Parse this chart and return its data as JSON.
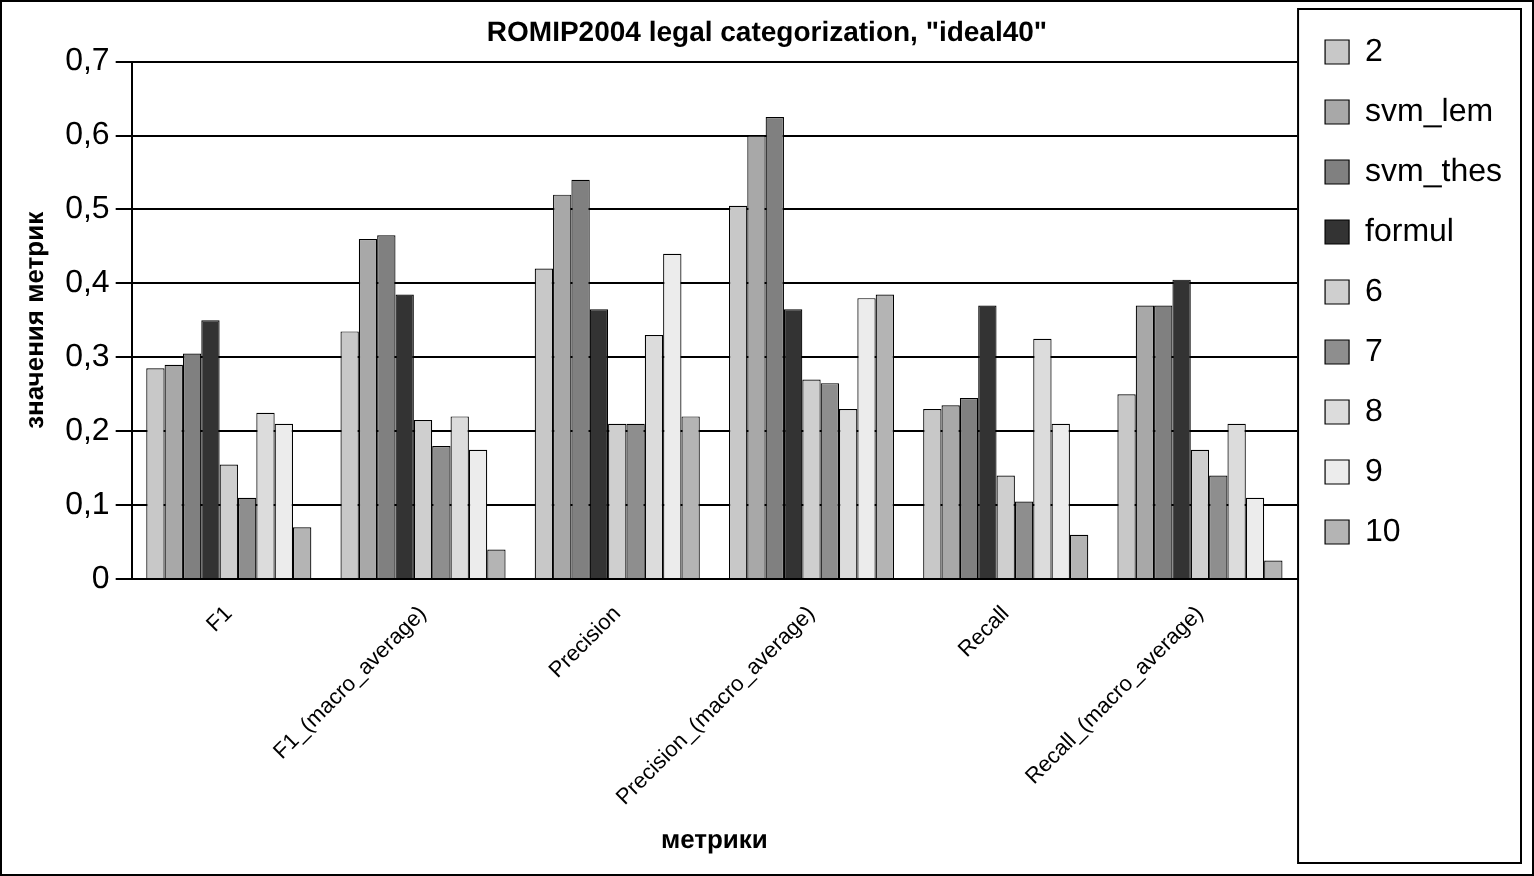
{
  "chart_data": {
    "type": "bar",
    "title": "ROMIP2004 legal categorization, \"ideal40\"",
    "xlabel": "метрики",
    "ylabel": "значения метрик",
    "categories": [
      "F1",
      "F1_(macro_average)",
      "Precision",
      "Precision_(macro_average)",
      "Recall",
      "Recall_(macro_average)"
    ],
    "series": [
      {
        "name": "2",
        "color": "#c8c8c8",
        "values": [
          0.285,
          0.335,
          0.42,
          0.505,
          0.23,
          0.25
        ]
      },
      {
        "name": "svm_lem",
        "color": "#a8a8a8",
        "values": [
          0.29,
          0.46,
          0.52,
          0.6,
          0.235,
          0.37
        ]
      },
      {
        "name": "svm_thes",
        "color": "#808080",
        "values": [
          0.305,
          0.465,
          0.54,
          0.625,
          0.245,
          0.37
        ]
      },
      {
        "name": "formul",
        "color": "#333333",
        "values": [
          0.35,
          0.385,
          0.365,
          0.365,
          0.37,
          0.405
        ]
      },
      {
        "name": "6",
        "color": "#cfcfcf",
        "values": [
          0.155,
          0.215,
          0.21,
          0.27,
          0.14,
          0.175
        ]
      },
      {
        "name": "7",
        "color": "#8e8e8e",
        "values": [
          0.11,
          0.18,
          0.21,
          0.265,
          0.105,
          0.14
        ]
      },
      {
        "name": "8",
        "color": "#dcdcdc",
        "values": [
          0.225,
          0.22,
          0.33,
          0.23,
          0.325,
          0.21
        ]
      },
      {
        "name": "9",
        "color": "#ececec",
        "values": [
          0.21,
          0.175,
          0.44,
          0.38,
          0.21,
          0.11
        ]
      },
      {
        "name": "10",
        "color": "#b4b4b4",
        "values": [
          0.07,
          0.04,
          0.22,
          0.385,
          0.06,
          0.025
        ]
      }
    ],
    "ylim": [
      0,
      0.7
    ],
    "yticks": [
      {
        "value": 0,
        "label": "0"
      },
      {
        "value": 0.1,
        "label": "0,1"
      },
      {
        "value": 0.2,
        "label": "0,2"
      },
      {
        "value": 0.3,
        "label": "0,3"
      },
      {
        "value": 0.4,
        "label": "0,4"
      },
      {
        "value": 0.5,
        "label": "0,5"
      },
      {
        "value": 0.6,
        "label": "0,6"
      },
      {
        "value": 0.7,
        "label": "0,7"
      }
    ],
    "grid": "y",
    "legend": "right"
  }
}
